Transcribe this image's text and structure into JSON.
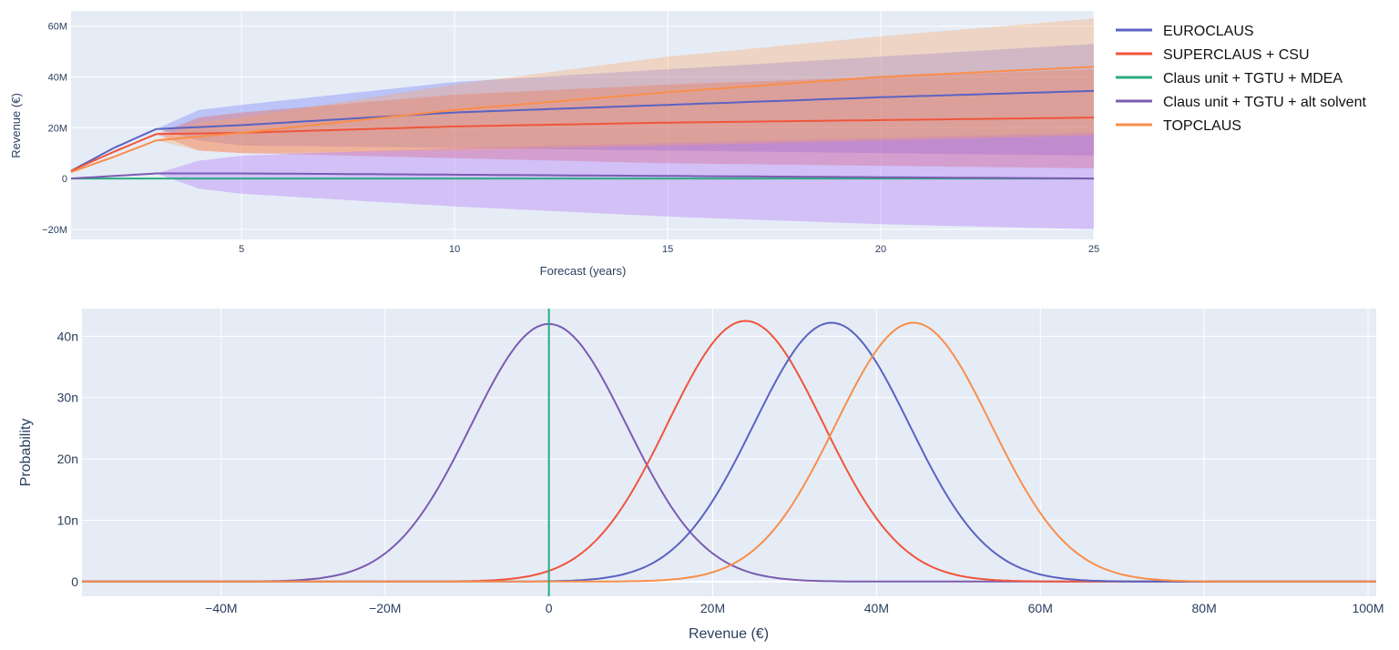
{
  "chart_data": [
    {
      "type": "area",
      "title": "",
      "xlabel": "Forecast (years)",
      "ylabel": "Revenue (€)",
      "xlim": [
        1,
        25
      ],
      "ylim": [
        -24,
        66
      ],
      "x_ticks": [
        5,
        10,
        15,
        20,
        25
      ],
      "x_tick_labels": [
        "5",
        "10",
        "15",
        "20",
        "25"
      ],
      "y_ticks": [
        -20,
        0,
        20,
        40,
        60
      ],
      "y_tick_labels": [
        "−20M",
        "0",
        "20M",
        "40M",
        "60M"
      ],
      "units": "M€",
      "legend": "right",
      "series": [
        {
          "name": "EUROCLAUS",
          "color": "#636efa",
          "line": "#5a63c0",
          "mean": [
            [
              1,
              3
            ],
            [
              2,
              12
            ],
            [
              3,
              19.5
            ],
            [
              5,
              21
            ],
            [
              10,
              26
            ],
            [
              15,
              29
            ],
            [
              20,
              32
            ],
            [
              25,
              34.5
            ]
          ],
          "band": [
            [
              1,
              3,
              3
            ],
            [
              3,
              19.5,
              19.5
            ],
            [
              4,
              15,
              27
            ],
            [
              5,
              13,
              29
            ],
            [
              10,
              12,
              38
            ],
            [
              15,
              11,
              43
            ],
            [
              20,
              10,
              48
            ],
            [
              25,
              9,
              53
            ]
          ]
        },
        {
          "name": "SUPERCLAUS + CSU",
          "color": "#ef553b",
          "line": "#ef553b",
          "mean": [
            [
              1,
              3
            ],
            [
              2,
              10.5
            ],
            [
              3,
              17.5
            ],
            [
              5,
              18
            ],
            [
              10,
              20.5
            ],
            [
              15,
              22
            ],
            [
              20,
              23
            ],
            [
              25,
              24
            ]
          ],
          "band": [
            [
              1,
              3,
              3
            ],
            [
              3,
              17.5,
              17.5
            ],
            [
              4,
              11,
              24
            ],
            [
              5,
              10,
              26
            ],
            [
              10,
              8,
              33
            ],
            [
              15,
              6,
              37
            ],
            [
              20,
              5,
              40
            ],
            [
              25,
              4,
              43
            ]
          ]
        },
        {
          "name": "Claus unit + TGTU + MDEA",
          "color": "#00cc96",
          "line": "#2aab7e",
          "mean": [
            [
              1,
              0
            ],
            [
              25,
              0
            ]
          ],
          "band": []
        },
        {
          "name": "Claus unit + TGTU + alt solvent",
          "color": "#ab63fa",
          "line": "#7b5bb0",
          "mean": [
            [
              1,
              0
            ],
            [
              3,
              2
            ],
            [
              5,
              2
            ],
            [
              10,
              1.5
            ],
            [
              15,
              1
            ],
            [
              20,
              0.5
            ],
            [
              25,
              0
            ]
          ],
          "band": [
            [
              1,
              0,
              0
            ],
            [
              3,
              2,
              2
            ],
            [
              4,
              -4,
              7
            ],
            [
              5,
              -6,
              9
            ],
            [
              10,
              -11,
              12
            ],
            [
              15,
              -15,
              14
            ],
            [
              20,
              -18,
              16
            ],
            [
              25,
              -20,
              18
            ]
          ]
        },
        {
          "name": "TOPCLAUS",
          "color": "#ffa15a",
          "line": "#f98e4a",
          "mean": [
            [
              1,
              2.5
            ],
            [
              2,
              8.5
            ],
            [
              3,
              15
            ],
            [
              5,
              18
            ],
            [
              10,
              27
            ],
            [
              15,
              34
            ],
            [
              20,
              40
            ],
            [
              25,
              44
            ]
          ],
          "band": [
            [
              1,
              2.5,
              2.5
            ],
            [
              3,
              15,
              15
            ],
            [
              4,
              11,
              22
            ],
            [
              5,
              10,
              24
            ],
            [
              10,
              11,
              37
            ],
            [
              15,
              13,
              48
            ],
            [
              20,
              15,
              56
            ],
            [
              25,
              17,
              63
            ]
          ]
        }
      ]
    },
    {
      "type": "line",
      "title": "",
      "xlabel": "Revenue (€)",
      "ylabel": "Probability",
      "xlim": [
        -57,
        101
      ],
      "ylim": [
        -2.4,
        44.5
      ],
      "x_ticks": [
        -40,
        -20,
        0,
        20,
        40,
        60,
        80,
        100
      ],
      "x_tick_labels": [
        "−40M",
        "−20M",
        "0",
        "20M",
        "40M",
        "60M",
        "80M",
        "100M"
      ],
      "y_ticks": [
        0,
        10,
        20,
        30,
        40
      ],
      "y_tick_labels": [
        "0",
        "10n",
        "20n",
        "30n",
        "40n"
      ],
      "units": "x in M€, y in n",
      "series": [
        {
          "name": "Claus unit + TGTU + alt solvent",
          "color": "#7b5bb0",
          "kind": "gaussian",
          "mean": 0,
          "sd": 9.5,
          "peak": 42
        },
        {
          "name": "SUPERCLAUS + CSU",
          "color": "#ef553b",
          "kind": "gaussian",
          "mean": 24,
          "sd": 9.5,
          "peak": 42.5
        },
        {
          "name": "EUROCLAUS",
          "color": "#5a63c0",
          "kind": "gaussian",
          "mean": 34.5,
          "sd": 9.5,
          "peak": 42.2
        },
        {
          "name": "TOPCLAUS",
          "color": "#f98e4a",
          "kind": "gaussian",
          "mean": 44.5,
          "sd": 9.5,
          "peak": 42.2
        },
        {
          "name": "Claus unit + TGTU + MDEA",
          "color": "#2aab7e",
          "kind": "vertical",
          "x": 0
        }
      ]
    }
  ]
}
